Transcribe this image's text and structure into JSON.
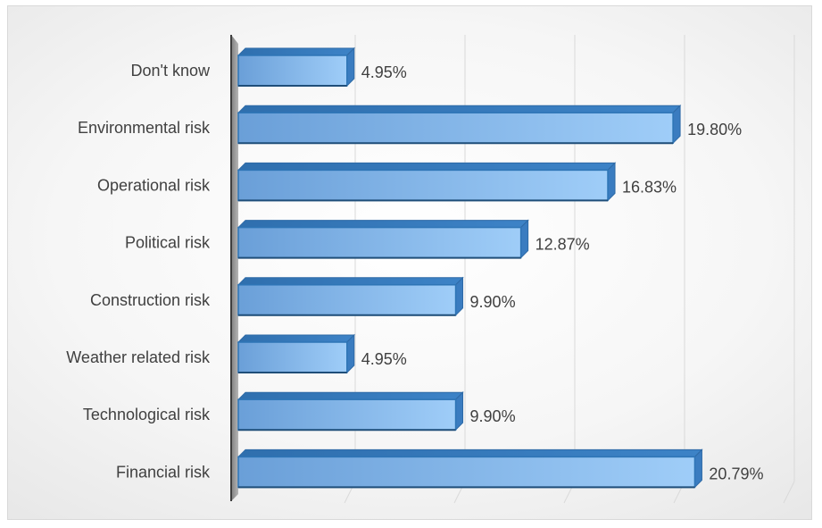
{
  "chart_data": {
    "type": "bar",
    "orientation": "horizontal",
    "style": "3d",
    "categories": [
      "Don't know",
      "Environmental risk",
      "Operational risk",
      "Political risk",
      "Construction risk",
      "Weather related risk",
      "Technological risk",
      "Financial risk"
    ],
    "values": [
      4.95,
      19.8,
      16.83,
      12.87,
      9.9,
      4.95,
      9.9,
      20.79
    ],
    "data_labels": [
      "4.95%",
      "19.80%",
      "16.83%",
      "12.87%",
      "9.90%",
      "4.95%",
      "9.90%",
      "20.79%"
    ],
    "xlim": [
      0,
      25
    ],
    "grid": true,
    "bar_color": "#5b9bd5"
  }
}
